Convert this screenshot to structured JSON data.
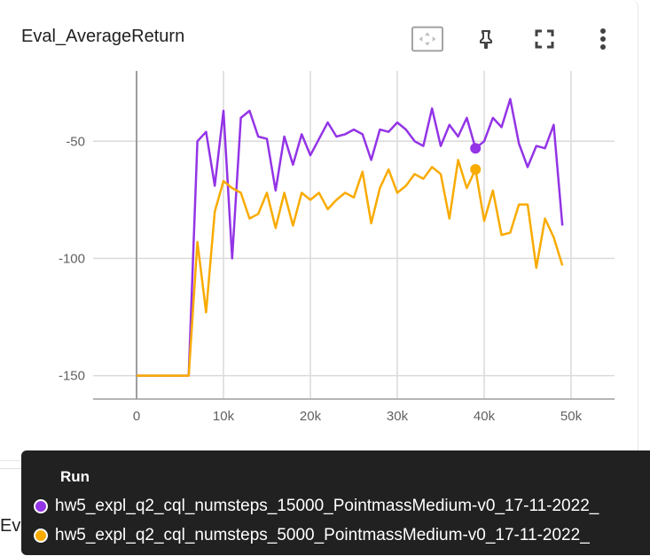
{
  "card": {
    "title": "Eval_AverageReturn",
    "tools": [
      {
        "name": "fit-domain-icon",
        "label": ""
      },
      {
        "name": "pin-icon",
        "label": ""
      },
      {
        "name": "fullscreen-icon",
        "label": ""
      },
      {
        "name": "more-vert-icon",
        "label": ""
      }
    ]
  },
  "next_card": {
    "title": "Eval_MaxReturn"
  },
  "tooltip": {
    "header": "Run",
    "rows": [
      {
        "label": "hw5_expl_q2_cql_numsteps_15000_PointmassMedium-v0_17-11-2022_",
        "color": "#9334e6"
      },
      {
        "label": "hw5_expl_q2_cql_numsteps_5000_PointmassMedium-v0_17-11-2022_",
        "color": "#f9ab00"
      }
    ]
  },
  "chart_data": {
    "type": "line",
    "xlim": [
      -5000,
      55000
    ],
    "ylim": [
      -160,
      -20
    ],
    "x_ticks": [
      0,
      10000,
      20000,
      30000,
      40000,
      50000
    ],
    "x_tick_labels": [
      "0",
      "10k",
      "20k",
      "30k",
      "40k",
      "50k"
    ],
    "y_ticks": [
      -150,
      -100,
      -50
    ],
    "y_tick_labels": [
      "-150",
      "-100",
      "-50"
    ],
    "grid": true,
    "highlight_x": 39000,
    "x": [
      0,
      1000,
      2000,
      3000,
      4000,
      5000,
      6000,
      7000,
      8000,
      9000,
      10000,
      11000,
      12000,
      13000,
      14000,
      15000,
      16000,
      17000,
      18000,
      19000,
      20000,
      21000,
      22000,
      23000,
      24000,
      25000,
      26000,
      27000,
      28000,
      29000,
      30000,
      31000,
      32000,
      33000,
      34000,
      35000,
      36000,
      37000,
      38000,
      39000,
      40000,
      41000,
      42000,
      43000,
      44000,
      45000,
      46000,
      47000,
      48000,
      49000
    ],
    "series": [
      {
        "name": "hw5_expl_q2_cql_numsteps_15000_PointmassMedium-v0_17-11-2022_",
        "color": "#9334e6",
        "values": [
          -150,
          -150,
          -150,
          -150,
          -150,
          -150,
          -150,
          -50,
          -46,
          -69,
          -37,
          -100,
          -40,
          -37,
          -48,
          -49,
          -71,
          -48,
          -60,
          -47,
          -56,
          -49,
          -42,
          -48,
          -47,
          -45,
          -47,
          -58,
          -45,
          -46,
          -42,
          -45,
          -50,
          -52,
          -36,
          -52,
          -43,
          -48,
          -40,
          -53,
          -50,
          -40,
          -44,
          -32,
          -51,
          -61,
          -52,
          -53,
          -43,
          -86
        ]
      },
      {
        "name": "hw5_expl_q2_cql_numsteps_5000_PointmassMedium-v0_17-11-2022_",
        "color": "#f9ab00",
        "values": [
          -150,
          -150,
          -150,
          -150,
          -150,
          -150,
          -150,
          -93,
          -123,
          -80,
          -67,
          -70,
          -72,
          -83,
          -81,
          -72,
          -87,
          -72,
          -86,
          -72,
          -75,
          -72,
          -79,
          -75,
          -72,
          -74,
          -63,
          -85,
          -70,
          -62,
          -72,
          -69,
          -64,
          -66,
          -61,
          -64,
          -83,
          -58,
          -70,
          -62,
          -84,
          -71,
          -90,
          -89,
          -77,
          -77,
          -104,
          -83,
          -91,
          -103
        ]
      }
    ]
  }
}
